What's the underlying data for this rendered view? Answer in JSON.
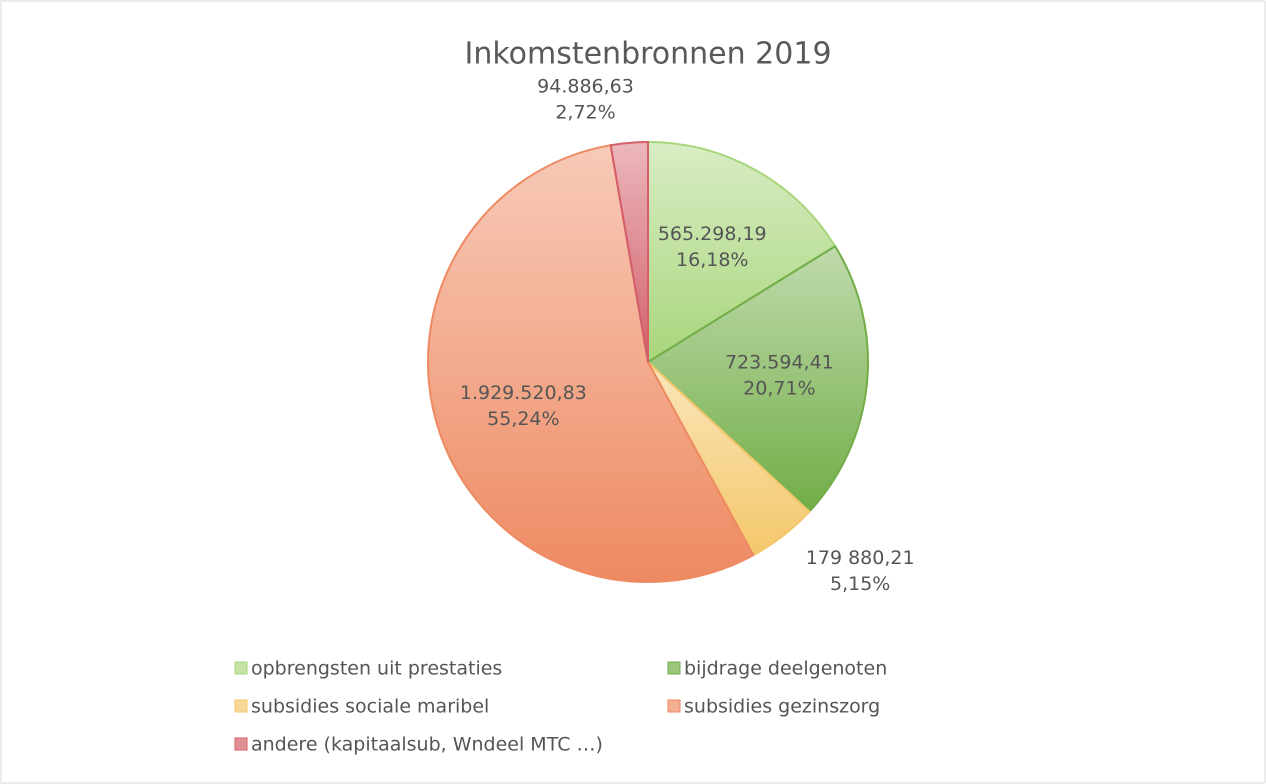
{
  "chart_data": {
    "type": "pie",
    "title": "Inkomstenbronnen 2019",
    "categories": [
      "opbrengsten uit prestaties",
      "bijdrage deelgenoten",
      "subsidies sociale maribel",
      "subsidies gezinszorg",
      "andere (kapitaalsub, Wndeel MTC …)"
    ],
    "values": [
      565298.19,
      723594.41,
      179880.21,
      1929520.83,
      94886.63
    ],
    "value_labels": [
      "565.298,19",
      "723.594,41",
      "179 880,21",
      "1.929.520,83",
      "94.886,63"
    ],
    "percent_labels": [
      "16,18%",
      "20,71%",
      "5,15%",
      "55,24%",
      "2,72%"
    ],
    "colors": [
      "#a9d67c",
      "#72ad47",
      "#f4c76a",
      "#ee8a62",
      "#d35f6a"
    ],
    "legend": "bottom"
  }
}
